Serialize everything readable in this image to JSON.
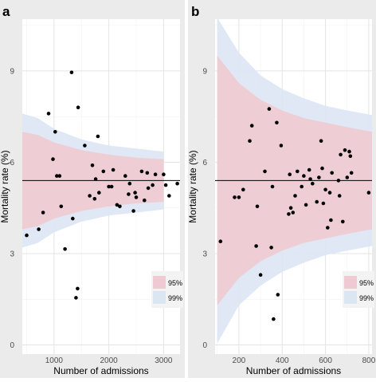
{
  "chart_data": [
    {
      "panel_label": "a",
      "type": "scatter",
      "xlabel": "Number of admissions",
      "ylabel": "Mortality rate (%)",
      "xlim": [
        420,
        3300
      ],
      "ylim": [
        -0.3,
        10.7
      ],
      "xticks": [
        1000,
        2000,
        3000
      ],
      "xtick_labels": [
        "1000",
        "2000",
        "3000"
      ],
      "yticks": [
        0,
        3,
        6,
        9
      ],
      "ytick_labels": [
        "0",
        "3",
        "6",
        "9"
      ],
      "grid": true,
      "mean_line": 5.4,
      "band_colors": {
        "95%": "#efcad2",
        "99%": "#dbe6f3"
      },
      "bands": [
        {
          "x": 420,
          "lo95": 3.8,
          "hi95": 7.0,
          "lo99": 3.2,
          "hi99": 7.6
        },
        {
          "x": 700,
          "lo95": 3.9,
          "hi95": 6.9,
          "lo99": 3.35,
          "hi99": 7.45
        },
        {
          "x": 1000,
          "lo95": 4.15,
          "hi95": 6.65,
          "lo99": 3.7,
          "hi99": 7.1
        },
        {
          "x": 1500,
          "lo95": 4.4,
          "hi95": 6.4,
          "lo99": 4.05,
          "hi99": 6.75
        },
        {
          "x": 2000,
          "lo95": 4.55,
          "hi95": 6.25,
          "lo99": 4.25,
          "hi99": 6.55
        },
        {
          "x": 2500,
          "lo95": 4.65,
          "hi95": 6.15,
          "lo99": 4.35,
          "hi99": 6.45
        },
        {
          "x": 3000,
          "lo95": 4.7,
          "hi95": 6.1,
          "lo99": 4.45,
          "hi99": 6.35
        }
      ],
      "points": [
        [
          500,
          3.6
        ],
        [
          720,
          3.8
        ],
        [
          800,
          4.35
        ],
        [
          900,
          7.6
        ],
        [
          980,
          6.1
        ],
        [
          1020,
          7.0
        ],
        [
          1050,
          5.55
        ],
        [
          1100,
          5.55
        ],
        [
          1130,
          4.55
        ],
        [
          1200,
          3.15
        ],
        [
          1320,
          8.95
        ],
        [
          1340,
          4.15
        ],
        [
          1400,
          1.55
        ],
        [
          1430,
          1.85
        ],
        [
          1440,
          7.8
        ],
        [
          1560,
          6.55
        ],
        [
          1650,
          4.9
        ],
        [
          1700,
          5.9
        ],
        [
          1740,
          4.8
        ],
        [
          1760,
          5.45
        ],
        [
          1800,
          6.85
        ],
        [
          1820,
          5.0
        ],
        [
          1900,
          5.7
        ],
        [
          2000,
          5.2
        ],
        [
          2050,
          5.2
        ],
        [
          2080,
          5.75
        ],
        [
          2150,
          4.6
        ],
        [
          2200,
          4.55
        ],
        [
          2300,
          5.55
        ],
        [
          2360,
          4.95
        ],
        [
          2380,
          5.3
        ],
        [
          2450,
          4.4
        ],
        [
          2480,
          5.0
        ],
        [
          2500,
          4.85
        ],
        [
          2600,
          5.7
        ],
        [
          2650,
          4.75
        ],
        [
          2700,
          5.65
        ],
        [
          2720,
          5.15
        ],
        [
          2800,
          5.25
        ],
        [
          2850,
          5.6
        ],
        [
          3000,
          5.6
        ],
        [
          3040,
          5.25
        ],
        [
          3100,
          4.9
        ],
        [
          3250,
          5.3
        ]
      ]
    },
    {
      "panel_label": "b",
      "type": "scatter",
      "xlabel": "Number of admissions",
      "ylabel": "Mortality rate (%)",
      "xlim": [
        90,
        815
      ],
      "ylim": [
        -0.3,
        10.7
      ],
      "xticks": [
        200,
        400,
        600,
        800
      ],
      "xtick_labels": [
        "200",
        "400",
        "600",
        "800"
      ],
      "yticks": [
        0,
        3,
        6,
        9
      ],
      "ytick_labels": [
        "0",
        "3",
        "6",
        "9"
      ],
      "grid": true,
      "mean_line": 5.4,
      "band_colors": {
        "95%": "#efcad2",
        "99%": "#dbe6f3"
      },
      "bands": [
        {
          "x": 100,
          "lo95": 1.3,
          "hi95": 9.5,
          "lo99": 0.05,
          "hi99": 10.75
        },
        {
          "x": 200,
          "lo95": 2.2,
          "hi95": 8.6,
          "lo99": 1.3,
          "hi99": 9.6
        },
        {
          "x": 300,
          "lo95": 2.75,
          "hi95": 8.05,
          "lo99": 1.95,
          "hi99": 8.85
        },
        {
          "x": 400,
          "lo95": 3.1,
          "hi95": 7.7,
          "lo99": 2.4,
          "hi99": 8.4
        },
        {
          "x": 500,
          "lo95": 3.35,
          "hi95": 7.45,
          "lo99": 2.7,
          "hi99": 8.1
        },
        {
          "x": 600,
          "lo95": 3.5,
          "hi95": 7.3,
          "lo99": 2.95,
          "hi99": 7.85
        },
        {
          "x": 700,
          "lo95": 3.65,
          "hi95": 7.15,
          "lo99": 3.1,
          "hi99": 7.7
        },
        {
          "x": 815,
          "lo95": 3.8,
          "hi95": 7.0,
          "lo99": 3.25,
          "hi99": 7.55
        }
      ],
      "points": [
        [
          115,
          3.4
        ],
        [
          180,
          4.85
        ],
        [
          200,
          4.85
        ],
        [
          220,
          5.1
        ],
        [
          250,
          6.7
        ],
        [
          260,
          7.2
        ],
        [
          280,
          3.25
        ],
        [
          285,
          4.55
        ],
        [
          300,
          2.3
        ],
        [
          320,
          5.7
        ],
        [
          340,
          7.75
        ],
        [
          350,
          3.2
        ],
        [
          355,
          5.2
        ],
        [
          360,
          0.85
        ],
        [
          375,
          7.3
        ],
        [
          380,
          1.65
        ],
        [
          395,
          6.55
        ],
        [
          430,
          4.3
        ],
        [
          435,
          5.6
        ],
        [
          440,
          4.5
        ],
        [
          450,
          4.35
        ],
        [
          460,
          4.9
        ],
        [
          470,
          5.7
        ],
        [
          490,
          5.2
        ],
        [
          500,
          5.55
        ],
        [
          510,
          4.6
        ],
        [
          525,
          5.75
        ],
        [
          530,
          5.45
        ],
        [
          540,
          5.3
        ],
        [
          560,
          4.7
        ],
        [
          570,
          5.5
        ],
        [
          580,
          6.7
        ],
        [
          585,
          5.8
        ],
        [
          590,
          4.65
        ],
        [
          600,
          5.1
        ],
        [
          610,
          3.85
        ],
        [
          620,
          5.0
        ],
        [
          625,
          4.1
        ],
        [
          630,
          5.65
        ],
        [
          660,
          5.4
        ],
        [
          665,
          4.9
        ],
        [
          670,
          6.25
        ],
        [
          680,
          4.05
        ],
        [
          690,
          6.4
        ],
        [
          700,
          5.5
        ],
        [
          710,
          6.35
        ],
        [
          715,
          6.2
        ],
        [
          720,
          5.65
        ],
        [
          800,
          5.0
        ]
      ]
    }
  ]
}
